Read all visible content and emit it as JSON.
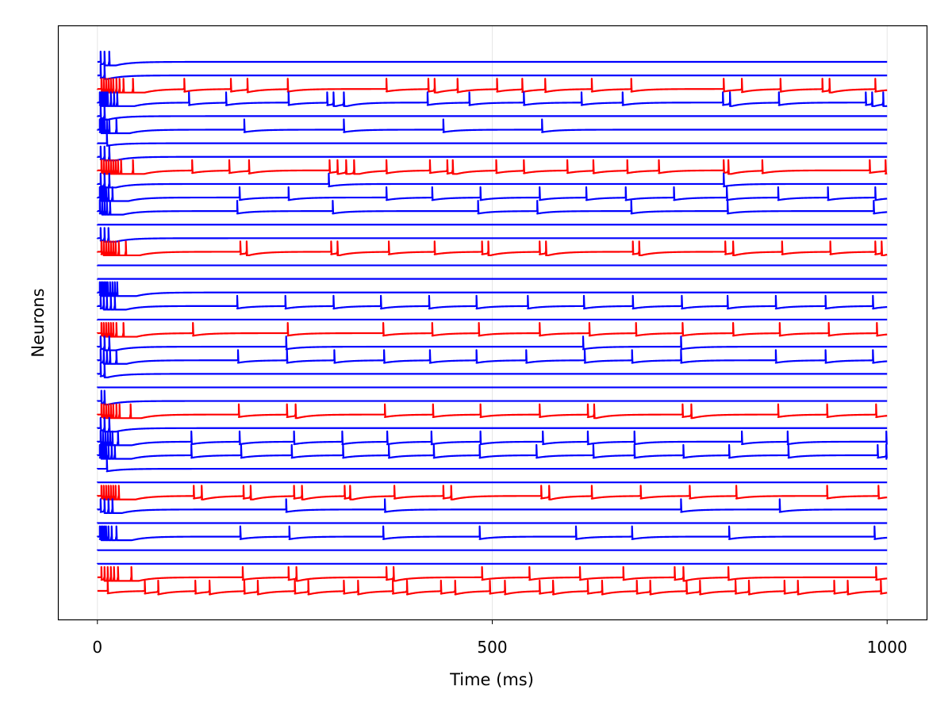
{
  "chart_data": {
    "type": "line",
    "title": "",
    "xlabel": "Time (ms)",
    "ylabel": "Neurons",
    "xlim": [
      -50,
      1050
    ],
    "xticks": [
      0,
      500,
      1000
    ],
    "xtick_labels": [
      "0",
      "500",
      "1000"
    ],
    "yticks": [],
    "grid": "vertical",
    "legend": "none",
    "colors": {
      "excitatory": "#0000ff",
      "inhibitory": "#ff0000",
      "grid": "#e6e6e6"
    },
    "series": [
      {
        "color": "#0000ff",
        "spikes": [
          4,
          9,
          15
        ]
      },
      {
        "color": "#0000ff",
        "spikes": [
          4,
          9
        ]
      },
      {
        "color": "#ff0000",
        "spikes": [
          5,
          8,
          11,
          14,
          17,
          20,
          24,
          28,
          33,
          45,
          110,
          169,
          190,
          241,
          366,
          419,
          427,
          456,
          506,
          538,
          567,
          626,
          676,
          793,
          816,
          865,
          918,
          927,
          985
        ]
      },
      {
        "color": "#0000ff",
        "spikes": [
          3,
          5,
          7,
          9,
          11,
          13,
          17,
          21,
          25,
          116,
          163,
          242,
          291,
          299,
          312,
          418,
          471,
          540,
          613,
          665,
          792,
          801,
          863,
          973,
          981,
          995
        ]
      },
      {
        "color": "#0000ff",
        "spikes": [
          4,
          9
        ]
      },
      {
        "color": "#0000ff",
        "spikes": [
          3,
          5,
          7,
          9,
          12,
          15,
          24,
          186,
          312,
          438,
          563
        ]
      },
      {
        "color": "#0000ff",
        "spikes": [
          12
        ]
      },
      {
        "color": "#0000ff",
        "spikes": [
          4,
          9,
          15
        ]
      },
      {
        "color": "#ff0000",
        "spikes": [
          5,
          8,
          11,
          14,
          17,
          20,
          23,
          26,
          30,
          45,
          120,
          167,
          192,
          294,
          304,
          315,
          325,
          366,
          421,
          443,
          450,
          505,
          540,
          595,
          628,
          671,
          711,
          793,
          799,
          842,
          978,
          998
        ]
      },
      {
        "color": "#0000ff",
        "spikes": [
          4,
          9,
          15,
          293,
          793
        ]
      },
      {
        "color": "#0000ff",
        "spikes": [
          3,
          5,
          7,
          9,
          11,
          14,
          19,
          180,
          242,
          366,
          424,
          485,
          560,
          619,
          669,
          730,
          797,
          862,
          925,
          985
        ]
      },
      {
        "color": "#0000ff",
        "spikes": [
          3,
          6,
          9,
          12,
          16,
          177,
          298,
          482,
          557,
          676,
          798,
          983
        ]
      },
      {
        "color": "#0000ff",
        "spikes": []
      },
      {
        "color": "#0000ff",
        "spikes": [
          4,
          9,
          14
        ]
      },
      {
        "color": "#ff0000",
        "spikes": [
          5,
          8,
          11,
          14,
          17,
          20,
          23,
          27,
          36,
          181,
          189,
          296,
          304,
          369,
          427,
          487,
          495,
          560,
          568,
          678,
          686,
          795,
          805,
          867,
          928,
          985,
          993
        ]
      },
      {
        "color": "#0000ff",
        "spikes": []
      },
      {
        "color": "#0000ff",
        "spikes": []
      },
      {
        "color": "#0000ff",
        "spikes": [
          3,
          5,
          7,
          9,
          11,
          13,
          16,
          19,
          22,
          25
        ]
      },
      {
        "color": "#0000ff",
        "spikes": [
          4,
          8,
          12,
          17,
          22,
          177,
          238,
          299,
          359,
          420,
          480,
          545,
          616,
          678,
          740,
          798,
          859,
          922,
          982
        ]
      },
      {
        "color": "#0000ff",
        "spikes": []
      },
      {
        "color": "#ff0000",
        "spikes": [
          5,
          8,
          11,
          14,
          17,
          20,
          24,
          33,
          121,
          241,
          362,
          424,
          483,
          560,
          623,
          682,
          741,
          805,
          864,
          926,
          987
        ]
      },
      {
        "color": "#0000ff",
        "spikes": [
          4,
          9,
          15,
          239,
          615,
          739
        ]
      },
      {
        "color": "#0000ff",
        "spikes": [
          4,
          8,
          12,
          16,
          24,
          178,
          240,
          300,
          363,
          421,
          480,
          543,
          617,
          677,
          739,
          859,
          922,
          982
        ]
      },
      {
        "color": "#0000ff",
        "spikes": [
          4,
          9
        ]
      },
      {
        "color": "#0000ff",
        "spikes": []
      },
      {
        "color": "#0000ff",
        "spikes": [
          5,
          9
        ]
      },
      {
        "color": "#ff0000",
        "spikes": [
          5,
          8,
          11,
          14,
          17,
          20,
          24,
          28,
          42,
          179,
          240,
          251,
          364,
          425,
          485,
          560,
          621,
          629,
          741,
          752,
          862,
          924,
          986
        ]
      },
      {
        "color": "#0000ff",
        "spikes": [
          4,
          9,
          15
        ]
      },
      {
        "color": "#0000ff",
        "spikes": [
          4,
          7,
          10,
          13,
          16,
          19,
          26,
          119,
          180,
          249,
          310,
          367,
          423,
          485,
          564,
          621,
          680,
          816,
          874,
          999
        ]
      },
      {
        "color": "#0000ff",
        "spikes": [
          3,
          5,
          7,
          9,
          11,
          14,
          18,
          22,
          119,
          182,
          246,
          311,
          369,
          426,
          484,
          556,
          628,
          680,
          742,
          800,
          875,
          988,
          999
        ]
      },
      {
        "color": "#0000ff",
        "spikes": [
          12
        ]
      },
      {
        "color": "#0000ff",
        "spikes": []
      },
      {
        "color": "#ff0000",
        "spikes": [
          5,
          8,
          11,
          14,
          17,
          20,
          23,
          27,
          122,
          132,
          185,
          194,
          249,
          259,
          313,
          320,
          376,
          438,
          448,
          562,
          572,
          626,
          688,
          750,
          809,
          924,
          989
        ]
      },
      {
        "color": "#0000ff",
        "spikes": [
          4,
          9,
          14,
          19,
          239,
          364,
          739,
          864
        ]
      },
      {
        "color": "#0000ff",
        "spikes": []
      },
      {
        "color": "#0000ff",
        "spikes": [
          3,
          5,
          7,
          9,
          11,
          14,
          18,
          24,
          181,
          243,
          362,
          484,
          606,
          677,
          800,
          984
        ]
      },
      {
        "color": "#0000ff",
        "spikes": []
      },
      {
        "color": "#0000ff",
        "spikes": []
      },
      {
        "color": "#ff0000",
        "spikes": [
          5,
          9,
          13,
          17,
          21,
          26,
          43,
          184,
          242,
          252,
          366,
          375,
          487,
          547,
          611,
          666,
          731,
          742,
          799,
          986
        ]
      },
      {
        "color": "#ff0000",
        "spikes": [
          13,
          60,
          77,
          124,
          142,
          186,
          203,
          250,
          267,
          312,
          330,
          374,
          392,
          435,
          453,
          497,
          516,
          560,
          577,
          621,
          639,
          683,
          700,
          746,
          763,
          808,
          825,
          870,
          887,
          933,
          950,
          992
        ]
      }
    ]
  }
}
